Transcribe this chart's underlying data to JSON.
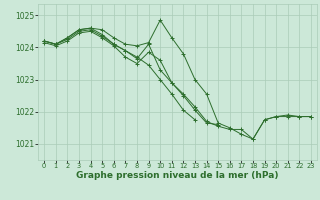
{
  "background_color": "#cce8d8",
  "grid_color": "#aaccb8",
  "line_color": "#2d6e2d",
  "marker_color": "#2d6e2d",
  "xlabel": "Graphe pression niveau de la mer (hPa)",
  "xlabel_fontsize": 6.5,
  "ylabel_ticks": [
    1021,
    1022,
    1023,
    1024,
    1025
  ],
  "ytick_fontsize": 5.5,
  "xtick_fontsize": 4.8,
  "xlim": [
    -0.5,
    23.5
  ],
  "ylim": [
    1020.5,
    1025.35
  ],
  "xticks": [
    0,
    1,
    2,
    3,
    4,
    5,
    6,
    7,
    8,
    9,
    10,
    11,
    12,
    13,
    14,
    15,
    16,
    17,
    18,
    19,
    20,
    21,
    22,
    23
  ],
  "series": [
    [
      1024.2,
      1024.1,
      1024.3,
      1024.55,
      1024.6,
      1024.55,
      1024.3,
      1024.1,
      1024.05,
      1024.15,
      1024.85,
      1024.3,
      1023.8,
      1023.0,
      1022.55,
      1021.65,
      1021.5,
      1021.3,
      1021.15,
      1021.75,
      1021.85,
      1021.85,
      1021.85,
      1021.85
    ],
    [
      1024.2,
      1024.1,
      1024.3,
      1024.55,
      1024.6,
      1024.4,
      1024.1,
      1023.9,
      1023.7,
      1023.45,
      1023.0,
      1022.55,
      1022.05,
      1021.75,
      null,
      null,
      null,
      null,
      null,
      null,
      null,
      null,
      null,
      null
    ],
    [
      1024.2,
      1024.1,
      1024.25,
      1024.5,
      1024.55,
      1024.35,
      1024.1,
      1023.9,
      1023.65,
      1024.1,
      1023.3,
      1022.9,
      1022.55,
      1022.15,
      1021.7,
      1021.55,
      1021.45,
      1021.45,
      1021.15,
      1021.75,
      1021.85,
      1021.9,
      1021.85,
      1021.85
    ],
    [
      1024.15,
      1024.05,
      1024.2,
      1024.45,
      1024.5,
      1024.3,
      1024.05,
      1023.7,
      1023.5,
      1023.85,
      1023.6,
      1022.9,
      1022.5,
      1022.05,
      1021.65,
      1021.6,
      null,
      null,
      null,
      null,
      null,
      null,
      null,
      null
    ]
  ]
}
